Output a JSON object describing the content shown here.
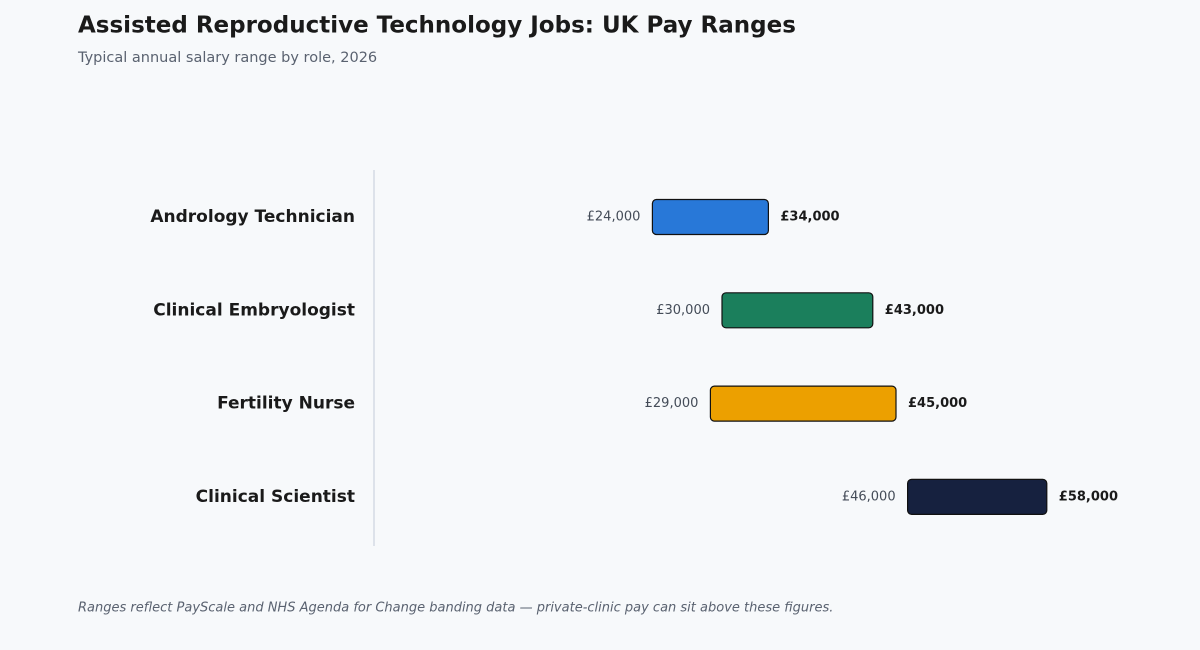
{
  "chart_data": {
    "type": "range-bar",
    "title": "Assisted Reproductive Technology Jobs: UK Pay Ranges",
    "subtitle": "Typical annual salary range by role, 2026",
    "note": "Ranges reflect PayScale and NHS Agenda for Change banding data — private-clinic pay can sit above these figures.",
    "xlim": [
      0,
      60000
    ],
    "ranges": [
      {
        "category": "Andrology Technician",
        "low": 24000,
        "high": 34000,
        "low_label": "£24,000",
        "high_label": "£34,000",
        "color": "#2878d8"
      },
      {
        "category": "Clinical Embryologist",
        "low": 30000,
        "high": 43000,
        "low_label": "£30,000",
        "high_label": "£43,000",
        "color": "#1b7f5c"
      },
      {
        "category": "Fertility Nurse",
        "low": 29000,
        "high": 45000,
        "low_label": "£29,000",
        "high_label": "£45,000",
        "color": "#eca000"
      },
      {
        "category": "Clinical Scientist",
        "low": 46000,
        "high": 58000,
        "low_label": "£46,000",
        "high_label": "£58,000",
        "color": "#16213f"
      }
    ]
  }
}
